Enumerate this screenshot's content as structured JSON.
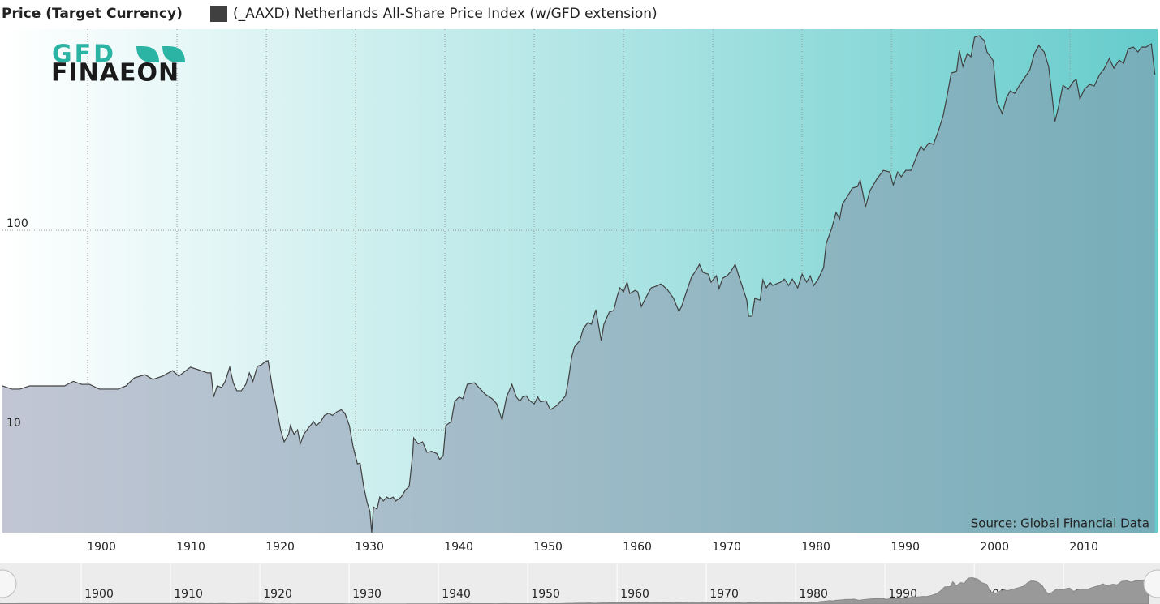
{
  "chart_data": {
    "type": "area",
    "title": "Price (Target Currency)",
    "source": "Source: Global Financial Data",
    "logo": [
      "GFD",
      "FINAEON"
    ],
    "log_scale": true,
    "grid": true,
    "xlim": [
      1890.45,
      2019.8
    ],
    "ylim": [
      3.05,
      1020
    ],
    "yticks": [
      10,
      100
    ],
    "xticks": [
      1900,
      1910,
      1920,
      1930,
      1940,
      1950,
      1960,
      1970,
      1980,
      1990,
      2000,
      2010
    ],
    "x": [
      1890.45,
      1891.5,
      1892.4,
      1893.5,
      1897.4,
      1898.4,
      1899.3,
      1900.2,
      1901.3,
      1903.4,
      1904.3,
      1905.2,
      1906.4,
      1907.3,
      1908.4,
      1909.5,
      1910.2,
      1911.5,
      1912.4,
      1913.4,
      1913.8,
      1914.1,
      1914.5,
      1915,
      1915.4,
      1915.9,
      1916.3,
      1916.7,
      1917.2,
      1917.7,
      1918.1,
      1918.5,
      1919,
      1919.4,
      1919.9,
      1920.2,
      1920.7,
      1921.1,
      1921.6,
      1922,
      1922.5,
      1922.7,
      1923.1,
      1923.5,
      1923.8,
      1924.2,
      1924.7,
      1925.3,
      1925.6,
      1926.1,
      1926.5,
      1927,
      1927.4,
      1927.9,
      1928.4,
      1928.8,
      1929.3,
      1929.7,
      1930.2,
      1930.5,
      1930.9,
      1931.3,
      1931.6,
      1931.8,
      1932,
      1932.4,
      1932.7,
      1933.1,
      1933.5,
      1933.8,
      1934.2,
      1934.5,
      1935.1,
      1935.6,
      1936,
      1936.4,
      1936.5,
      1937,
      1937.5,
      1938,
      1938.5,
      1939.1,
      1939.4,
      1939.8,
      1940.1,
      1940.7,
      1941.1,
      1941.6,
      1942,
      1942.5,
      1943.3,
      1943.8,
      1944.5,
      1945.3,
      1945.8,
      1946.4,
      1946.9,
      1947.5,
      1948,
      1948.4,
      1948.7,
      1949.1,
      1949.5,
      1950,
      1950.4,
      1950.7,
      1951.3,
      1951.8,
      1952.5,
      1953.1,
      1953.5,
      1953.8,
      1954.2,
      1954.5,
      1955.1,
      1955.5,
      1956,
      1956.4,
      1956.9,
      1957.5,
      1957.8,
      1958.4,
      1958.9,
      1959.3,
      1959.6,
      1960,
      1960.4,
      1960.7,
      1961.3,
      1961.6,
      1962,
      1962.5,
      1963.1,
      1963.6,
      1964.2,
      1964.9,
      1965.6,
      1966.2,
      1966.5,
      1967.1,
      1967.6,
      1968.2,
      1968.5,
      1968.9,
      1969.5,
      1969.8,
      1970.4,
      1970.7,
      1971.1,
      1971.6,
      1972,
      1972.5,
      1972.9,
      1973.5,
      1973.8,
      1974,
      1974.4,
      1974.7,
      1975.3,
      1975.6,
      1976,
      1976.4,
      1976.7,
      1977.1,
      1977.6,
      1978,
      1978.5,
      1978.9,
      1979.5,
      1980,
      1980.5,
      1980.9,
      1981.3,
      1981.8,
      1982.4,
      1982.7,
      1983.3,
      1983.8,
      1984.2,
      1984.5,
      1985.3,
      1985.6,
      1986.2,
      1986.5,
      1987.1,
      1987.6,
      1988.4,
      1989.1,
      1989.8,
      1990.2,
      1990.7,
      1991.1,
      1991.6,
      1992.2,
      1992.7,
      1993.3,
      1993.6,
      1994.2,
      1994.7,
      1995.3,
      1995.8,
      1996.2,
      1996.7,
      1997.3,
      1997.6,
      1998,
      1998.5,
      1998.9,
      1999.3,
      1999.8,
      2000.4,
      2000.7,
      2001.1,
      2001.4,
      2001.8,
      2002.4,
      2002.9,
      2003.3,
      2003.8,
      2004.4,
      2004.9,
      2005.5,
      2006,
      2006.5,
      2007.1,
      2007.6,
      2008,
      2008.3,
      2008.7,
      2009.2,
      2009.8,
      2010.4,
      2010.7,
      2011.1,
      2011.6,
      2012.2,
      2012.7,
      2013.3,
      2013.8,
      2014.4,
      2014.9,
      2015.5,
      2016,
      2016.5,
      2017.1,
      2017.6,
      2018,
      2018.5,
      2019.1,
      2019.5
    ],
    "series": [
      {
        "name": "(_AAXD) Netherlands All-Share Price Index (w/GFD extension)",
        "color": "#404040",
        "values": [
          16.6,
          16.0,
          16.0,
          16.6,
          16.6,
          17.5,
          16.9,
          16.9,
          16.0,
          16.0,
          16.6,
          18.2,
          18.9,
          17.9,
          18.6,
          19.8,
          18.6,
          20.6,
          20.0,
          19.3,
          19.3,
          14.6,
          16.6,
          16.3,
          17.5,
          20.6,
          17.2,
          15.7,
          15.7,
          16.9,
          19.3,
          17.5,
          20.8,
          21.1,
          22.0,
          22.2,
          16.0,
          13.2,
          10.0,
          8.7,
          9.5,
          10.5,
          9.5,
          10.0,
          8.5,
          9.5,
          10.2,
          11.0,
          10.5,
          11.0,
          11.8,
          12.1,
          11.8,
          12.3,
          12.6,
          12.1,
          10.5,
          8.3,
          6.75,
          6.8,
          5.2,
          4.3,
          3.9,
          3.05,
          4.1,
          4.0,
          4.6,
          4.4,
          4.6,
          4.5,
          4.6,
          4.4,
          4.6,
          5.0,
          5.2,
          7.6,
          9.1,
          8.5,
          8.7,
          7.7,
          7.8,
          7.6,
          7.1,
          7.4,
          10.5,
          11.0,
          13.9,
          14.6,
          14.3,
          16.9,
          17.2,
          16.3,
          15.1,
          14.3,
          13.5,
          11.2,
          14.6,
          16.9,
          14.6,
          13.9,
          14.6,
          14.8,
          14.0,
          13.5,
          14.6,
          13.8,
          14.0,
          12.6,
          13.2,
          14.1,
          14.8,
          17.5,
          23.2,
          26.0,
          28.0,
          32.2,
          34.4,
          33.8,
          40.0,
          28.0,
          33.8,
          38.9,
          39.6,
          46.9,
          51.5,
          49.1,
          55.0,
          48.2,
          50.0,
          49.1,
          41.5,
          46.0,
          51.5,
          52.4,
          53.9,
          50.5,
          45.6,
          39.2,
          41.5,
          50.0,
          58.1,
          63.8,
          67.5,
          61.5,
          60.3,
          55.0,
          59.2,
          51.0,
          57.6,
          59.2,
          62.0,
          67.5,
          59.2,
          49.1,
          44.7,
          37.1,
          37.1,
          45.6,
          44.7,
          56.5,
          51.5,
          55.0,
          52.9,
          53.9,
          55.0,
          57.0,
          52.9,
          57.0,
          51.5,
          60.3,
          55.0,
          59.2,
          52.9,
          57.0,
          65.0,
          86.1,
          101.9,
          122.9,
          114.0,
          134.9,
          153.8,
          162.7,
          165.8,
          178.7,
          131.2,
          158.2,
          182.0,
          199.9,
          196.2,
          168.9,
          196.2,
          185.5,
          199.9,
          199.9,
          227.9,
          264.8,
          252.6,
          274.8,
          269.7,
          319.2,
          377.8,
          464.4,
          614.5,
          626.2,
          798.8,
          662.6,
          769.6,
          741.3,
          928,
          945.5,
          893.8,
          784,
          741.3,
          707.4,
          443,
          385,
          464.4,
          500.3,
          486.3,
          539.2,
          581,
          638,
          769.6,
          845,
          784,
          662.6,
          464.4,
          350.5,
          414.9,
          534,
          509.8,
          559.8,
          570.4,
          455.6,
          509.8,
          539.2,
          529,
          603,
          644,
          727.5,
          650,
          714,
          687.9,
          814,
          829.5,
          784,
          829.5,
          829.5,
          860.9,
          603
        ]
      }
    ]
  }
}
